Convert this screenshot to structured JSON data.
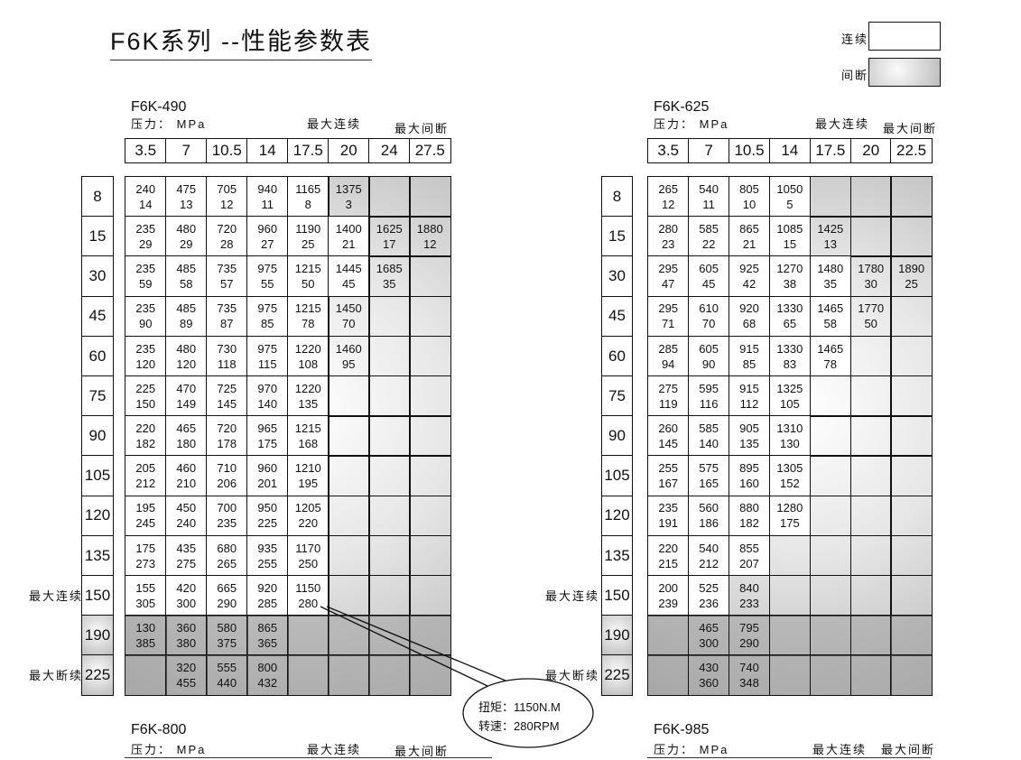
{
  "title": "F6K系列 --性能参数表",
  "legend": {
    "continuous": "连续",
    "intermittent": "间断",
    "continuous_color": "#ffffff",
    "intermittent_color": "#c8c8c8"
  },
  "side_labels": {
    "max_continuous": "最大连续",
    "max_intermittent": "最大断续"
  },
  "tables": [
    {
      "model": "F6K-490",
      "pressure_label": "压力： MPa",
      "max_continuous": "最大连续",
      "max_intermittent": "最大间断",
      "pressures": [
        "3.5",
        "7",
        "10.5",
        "14",
        "17.5",
        "20",
        "24",
        "27.5"
      ],
      "rows": [
        {
          "flow": "8",
          "cont": 5,
          "cells": [
            [
              "240",
              "14"
            ],
            [
              "475",
              "13"
            ],
            [
              "705",
              "12"
            ],
            [
              "940",
              "11"
            ],
            [
              "1165",
              "8"
            ],
            [
              "1375",
              "3"
            ],
            null,
            null
          ]
        },
        {
          "flow": "15",
          "cont": 6,
          "cells": [
            [
              "235",
              "29"
            ],
            [
              "480",
              "29"
            ],
            [
              "720",
              "28"
            ],
            [
              "960",
              "27"
            ],
            [
              "1190",
              "25"
            ],
            [
              "1400",
              "21"
            ],
            [
              "1625",
              "17"
            ],
            [
              "1880",
              "12"
            ]
          ]
        },
        {
          "flow": "30",
          "cont": 6,
          "cells": [
            [
              "235",
              "59"
            ],
            [
              "485",
              "58"
            ],
            [
              "735",
              "57"
            ],
            [
              "975",
              "55"
            ],
            [
              "1215",
              "50"
            ],
            [
              "1445",
              "45"
            ],
            [
              "1685",
              "35"
            ],
            null
          ]
        },
        {
          "flow": "45",
          "cont": 5,
          "cells": [
            [
              "235",
              "90"
            ],
            [
              "485",
              "89"
            ],
            [
              "735",
              "87"
            ],
            [
              "975",
              "85"
            ],
            [
              "1215",
              "78"
            ],
            [
              "1450",
              "70"
            ],
            null,
            null
          ]
        },
        {
          "flow": "60",
          "cont": 5,
          "cells": [
            [
              "235",
              "120"
            ],
            [
              "480",
              "120"
            ],
            [
              "730",
              "118"
            ],
            [
              "975",
              "115"
            ],
            [
              "1220",
              "108"
            ],
            [
              "1460",
              "95"
            ],
            null,
            null
          ]
        },
        {
          "flow": "75",
          "cont": 5,
          "cells": [
            [
              "225",
              "150"
            ],
            [
              "470",
              "149"
            ],
            [
              "725",
              "145"
            ],
            [
              "970",
              "140"
            ],
            [
              "1220",
              "135"
            ],
            null,
            null,
            null
          ]
        },
        {
          "flow": "90",
          "cont": 5,
          "cells": [
            [
              "220",
              "182"
            ],
            [
              "465",
              "180"
            ],
            [
              "720",
              "178"
            ],
            [
              "965",
              "175"
            ],
            [
              "1215",
              "168"
            ],
            null,
            null,
            null
          ]
        },
        {
          "flow": "105",
          "cont": 5,
          "cells": [
            [
              "205",
              "212"
            ],
            [
              "460",
              "210"
            ],
            [
              "710",
              "206"
            ],
            [
              "960",
              "201"
            ],
            [
              "1210",
              "195"
            ],
            null,
            null,
            null
          ]
        },
        {
          "flow": "120",
          "cont": 5,
          "cells": [
            [
              "195",
              "245"
            ],
            [
              "450",
              "240"
            ],
            [
              "700",
              "235"
            ],
            [
              "950",
              "225"
            ],
            [
              "1205",
              "220"
            ],
            null,
            null,
            null
          ]
        },
        {
          "flow": "135",
          "cont": 5,
          "cells": [
            [
              "175",
              "273"
            ],
            [
              "435",
              "275"
            ],
            [
              "680",
              "265"
            ],
            [
              "935",
              "255"
            ],
            [
              "1170",
              "250"
            ],
            null,
            null,
            null
          ]
        },
        {
          "flow": "150",
          "cont": 5,
          "cells": [
            [
              "155",
              "305"
            ],
            [
              "420",
              "300"
            ],
            [
              "665",
              "290"
            ],
            [
              "920",
              "285"
            ],
            [
              "1150",
              "280"
            ],
            null,
            null,
            null
          ]
        },
        {
          "flow": "190",
          "cont": 0,
          "cells": [
            [
              "130",
              "385"
            ],
            [
              "360",
              "380"
            ],
            [
              "580",
              "375"
            ],
            [
              "865",
              "365"
            ],
            null,
            null,
            null,
            null
          ]
        },
        {
          "flow": "225",
          "cont": 0,
          "cells": [
            null,
            [
              "320",
              "455"
            ],
            [
              "555",
              "440"
            ],
            [
              "800",
              "432"
            ],
            null,
            null,
            null,
            null
          ]
        }
      ]
    },
    {
      "model": "F6K-625",
      "pressure_label": "压力： MPa",
      "max_continuous": "最大连续",
      "max_intermittent": "最大间断",
      "pressures": [
        "3.5",
        "7",
        "10.5",
        "14",
        "17.5",
        "20",
        "22.5"
      ],
      "rows": [
        {
          "flow": "8",
          "cont": 4,
          "cells": [
            [
              "265",
              "12"
            ],
            [
              "540",
              "11"
            ],
            [
              "805",
              "10"
            ],
            [
              "1050",
              "5"
            ],
            null,
            null,
            null
          ]
        },
        {
          "flow": "15",
          "cont": 4,
          "cells": [
            [
              "280",
              "23"
            ],
            [
              "585",
              "22"
            ],
            [
              "865",
              "21"
            ],
            [
              "1085",
              "15"
            ],
            [
              "1425",
              "13"
            ],
            null,
            null
          ]
        },
        {
          "flow": "30",
          "cont": 5,
          "cells": [
            [
              "295",
              "47"
            ],
            [
              "605",
              "45"
            ],
            [
              "925",
              "42"
            ],
            [
              "1270",
              "38"
            ],
            [
              "1480",
              "35"
            ],
            [
              "1780",
              "30"
            ],
            [
              "1890",
              "25"
            ]
          ]
        },
        {
          "flow": "45",
          "cont": 5,
          "cells": [
            [
              "295",
              "71"
            ],
            [
              "610",
              "70"
            ],
            [
              "920",
              "68"
            ],
            [
              "1330",
              "65"
            ],
            [
              "1465",
              "58"
            ],
            [
              "1770",
              "50"
            ],
            null
          ]
        },
        {
          "flow": "60",
          "cont": 5,
          "cells": [
            [
              "285",
              "94"
            ],
            [
              "605",
              "90"
            ],
            [
              "915",
              "85"
            ],
            [
              "1330",
              "83"
            ],
            [
              "1465",
              "78"
            ],
            null,
            null
          ]
        },
        {
          "flow": "75",
          "cont": 4,
          "cells": [
            [
              "275",
              "119"
            ],
            [
              "595",
              "116"
            ],
            [
              "915",
              "112"
            ],
            [
              "1325",
              "105"
            ],
            null,
            null,
            null
          ]
        },
        {
          "flow": "90",
          "cont": 4,
          "cells": [
            [
              "260",
              "145"
            ],
            [
              "585",
              "140"
            ],
            [
              "905",
              "135"
            ],
            [
              "1310",
              "130"
            ],
            null,
            null,
            null
          ]
        },
        {
          "flow": "105",
          "cont": 4,
          "cells": [
            [
              "255",
              "167"
            ],
            [
              "575",
              "165"
            ],
            [
              "895",
              "160"
            ],
            [
              "1305",
              "152"
            ],
            null,
            null,
            null
          ]
        },
        {
          "flow": "120",
          "cont": 4,
          "cells": [
            [
              "235",
              "191"
            ],
            [
              "560",
              "186"
            ],
            [
              "880",
              "182"
            ],
            [
              "1280",
              "175"
            ],
            null,
            null,
            null
          ]
        },
        {
          "flow": "135",
          "cont": 3,
          "cells": [
            [
              "220",
              "215"
            ],
            [
              "540",
              "212"
            ],
            [
              "855",
              "207"
            ],
            null,
            null,
            null,
            null
          ]
        },
        {
          "flow": "150",
          "cont": 2,
          "cells": [
            [
              "200",
              "239"
            ],
            [
              "525",
              "236"
            ],
            [
              "840",
              "233"
            ],
            null,
            null,
            null,
            null
          ]
        },
        {
          "flow": "190",
          "cont": 0,
          "cells": [
            null,
            [
              "465",
              "300"
            ],
            [
              "795",
              "290"
            ],
            null,
            null,
            null,
            null
          ]
        },
        {
          "flow": "225",
          "cont": 0,
          "cells": [
            null,
            [
              "430",
              "360"
            ],
            [
              "740",
              "348"
            ],
            null,
            null,
            null,
            null
          ]
        }
      ]
    }
  ],
  "callout": {
    "torque": "扭矩：1150N.M",
    "speed": "转速：280RPM"
  },
  "next_tables": [
    {
      "model": "F6K-800",
      "pressure_label": "压力： MPa",
      "max_continuous": "最大连续",
      "max_intermittent": "最大间断"
    },
    {
      "model": "F6K-985",
      "pressure_label": "压力： MPa",
      "max_continuous": "最大连续",
      "max_intermittent": "最大间断"
    }
  ]
}
